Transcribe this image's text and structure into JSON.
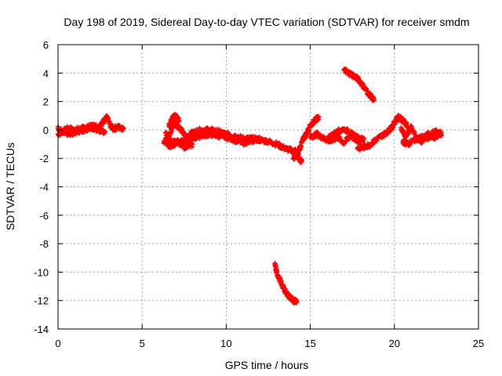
{
  "chart_data": {
    "type": "scatter",
    "title": "Day 198 of 2019, Sidereal Day-to-day VTEC variation (SDTVAR) for receiver smdm",
    "xlabel": "GPS time / hours",
    "ylabel": "SDTVAR / TECUs",
    "xlim": [
      0,
      25
    ],
    "ylim": [
      -14,
      6
    ],
    "xticks": [
      0,
      5,
      10,
      15,
      20,
      25
    ],
    "yticks": [
      -14,
      -12,
      -10,
      -8,
      -6,
      -4,
      -2,
      0,
      2,
      4,
      6
    ],
    "grid": true,
    "marker": "+",
    "series": [
      {
        "name": "SDTVAR",
        "color": "#ff0000",
        "segments": [
          {
            "x": [
              0.0,
              0.3,
              0.6,
              1.0,
              1.4,
              1.8,
              2.1,
              2.4,
              2.7,
              2.9,
              3.1,
              3.3,
              3.6,
              3.9
            ],
            "y": [
              -0.3,
              -0.1,
              0.1,
              0.0,
              0.1,
              0.2,
              0.3,
              0.2,
              0.6,
              0.9,
              0.3,
              0.1,
              0.2,
              0.1
            ]
          },
          {
            "x": [
              0.0,
              0.4,
              0.8,
              1.2,
              1.6,
              2.0,
              2.4,
              2.8
            ],
            "y": [
              0.1,
              -0.2,
              -0.3,
              -0.1,
              0.0,
              0.2,
              0.0,
              -0.1
            ]
          },
          {
            "x": [
              6.3,
              6.6,
              6.9,
              7.2,
              7.6,
              8.0,
              8.5,
              9.0,
              9.5,
              10.0,
              10.5,
              11.0,
              11.5,
              12.0,
              12.5,
              13.0,
              13.5,
              14.0,
              14.3
            ],
            "y": [
              -0.8,
              -0.5,
              0.5,
              0.2,
              -0.5,
              -0.2,
              0.0,
              0.0,
              -0.1,
              -0.3,
              -0.4,
              -0.6,
              -0.6,
              -0.7,
              -0.8,
              -1.0,
              -1.3,
              -1.5,
              -1.7
            ]
          },
          {
            "x": [
              6.4,
              6.8,
              7.2,
              7.6,
              8.0,
              8.5,
              9.0,
              9.5,
              10.0,
              10.5,
              11.0,
              11.5,
              12.0
            ],
            "y": [
              -0.2,
              -0.9,
              -0.8,
              -0.7,
              -0.6,
              -0.4,
              -0.3,
              -0.4,
              -0.5,
              -0.7,
              -0.9,
              -0.8,
              -0.6
            ]
          },
          {
            "x": [
              6.6,
              6.8,
              7.0,
              7.2
            ],
            "y": [
              0.3,
              0.8,
              1.0,
              0.6
            ]
          },
          {
            "x": [
              6.5,
              6.7,
              7.1,
              7.5,
              8.0
            ],
            "y": [
              -1.0,
              -1.1,
              -0.9,
              -1.2,
              -1.0
            ]
          },
          {
            "x": [
              14.0,
              14.2,
              14.4,
              14.6,
              14.8,
              15.0,
              15.3,
              15.5
            ],
            "y": [
              -2.0,
              -1.7,
              -1.2,
              -0.6,
              -0.2,
              0.3,
              0.7,
              0.9
            ]
          },
          {
            "x": [
              14.1,
              14.3,
              14.5
            ],
            "y": [
              -1.5,
              -2.0,
              -2.2
            ]
          },
          {
            "x": [
              15.0,
              15.4,
              15.8,
              16.2,
              16.6,
              17.0,
              17.4,
              17.8,
              18.2
            ],
            "y": [
              -0.5,
              -0.3,
              -0.6,
              -0.8,
              -0.5,
              -0.9,
              -0.4,
              -0.8,
              -0.6
            ]
          },
          {
            "x": [
              16.0,
              16.5,
              17.0,
              17.5,
              18.0
            ],
            "y": [
              -0.6,
              -0.2,
              0.1,
              -0.3,
              -0.7
            ]
          },
          {
            "x": [
              17.0,
              17.3,
              17.6,
              17.9,
              18.2,
              18.5,
              18.8
            ],
            "y": [
              4.2,
              4.0,
              3.8,
              3.5,
              3.0,
              2.5,
              2.1
            ]
          },
          {
            "x": [
              12.9,
              13.0,
              13.2,
              13.4,
              13.6,
              13.8,
              14.0,
              14.2
            ],
            "y": [
              -9.5,
              -10.0,
              -10.6,
              -11.1,
              -11.5,
              -11.8,
              -12.0,
              -12.0
            ]
          },
          {
            "x": [
              17.8,
              18.2,
              18.6,
              19.0,
              19.4,
              19.8,
              20.0,
              20.2,
              20.5,
              20.8
            ],
            "y": [
              -1.3,
              -1.2,
              -1.0,
              -0.6,
              -0.3,
              0.1,
              0.5,
              0.9,
              0.7,
              0.3
            ]
          },
          {
            "x": [
              20.4,
              20.7,
              21.0,
              21.3,
              21.6,
              22.0,
              22.4,
              22.8
            ],
            "y": [
              0.0,
              -0.4,
              0.2,
              -0.6,
              -0.8,
              -0.3,
              -0.5,
              -0.2
            ]
          },
          {
            "x": [
              20.5,
              20.8,
              21.2,
              21.6,
              22.0,
              22.4,
              22.8
            ],
            "y": [
              -0.8,
              -1.0,
              -0.7,
              -0.5,
              -0.6,
              -0.1,
              -0.4
            ]
          }
        ]
      }
    ]
  }
}
